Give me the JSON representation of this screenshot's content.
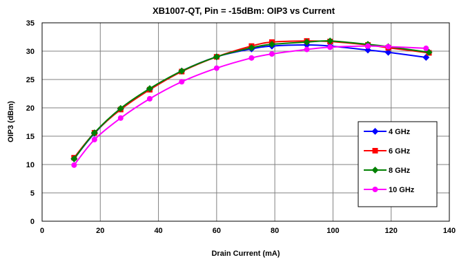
{
  "chart_data": {
    "type": "line",
    "title": "XB1007-QT,  Pin = -15dBm: OIP3 vs Current",
    "xlabel": "Drain Current (mA)",
    "ylabel": "OIP3 (dBm)",
    "xlim": [
      0,
      140
    ],
    "ylim": [
      0,
      35
    ],
    "xticks": [
      0,
      20,
      40,
      60,
      80,
      100,
      120,
      140
    ],
    "yticks": [
      0,
      5,
      10,
      15,
      20,
      25,
      30,
      35
    ],
    "grid": true,
    "legend_position": "right",
    "series": [
      {
        "name": "4 GHz",
        "color": "#0000ff",
        "marker": "diamond",
        "x": [
          11,
          18,
          27,
          37,
          48,
          60,
          72,
          79,
          91,
          99,
          112,
          119,
          132
        ],
        "y": [
          11,
          15.5,
          19.8,
          23.3,
          26.5,
          29,
          30.4,
          30.9,
          31.1,
          30.9,
          30.2,
          29.8,
          28.9
        ]
      },
      {
        "name": "6 GHz",
        "color": "#ff0000",
        "marker": "square",
        "x": [
          11,
          18,
          27,
          37,
          48,
          60,
          72,
          79,
          91,
          99,
          112,
          119,
          133
        ],
        "y": [
          11.2,
          15.6,
          19.7,
          23.2,
          26.4,
          29,
          30.9,
          31.6,
          31.8,
          31.7,
          31.1,
          30.6,
          29.7
        ]
      },
      {
        "name": "8 GHz",
        "color": "#008000",
        "marker": "diamond",
        "x": [
          11,
          18,
          27,
          37,
          48,
          60,
          72,
          79,
          91,
          99,
          112,
          119,
          133
        ],
        "y": [
          11,
          15.6,
          19.9,
          23.4,
          26.5,
          29,
          30.6,
          31.2,
          31.6,
          31.8,
          31.2,
          30.8,
          29.8
        ]
      },
      {
        "name": "10 GHz",
        "color": "#ff00ff",
        "marker": "circle",
        "x": [
          11,
          18,
          27,
          37,
          48,
          60,
          72,
          79,
          91,
          99,
          112,
          119,
          132
        ],
        "y": [
          9.9,
          14.4,
          18.2,
          21.6,
          24.6,
          27,
          28.8,
          29.5,
          30.3,
          30.7,
          30.9,
          30.8,
          30.5
        ]
      }
    ]
  }
}
